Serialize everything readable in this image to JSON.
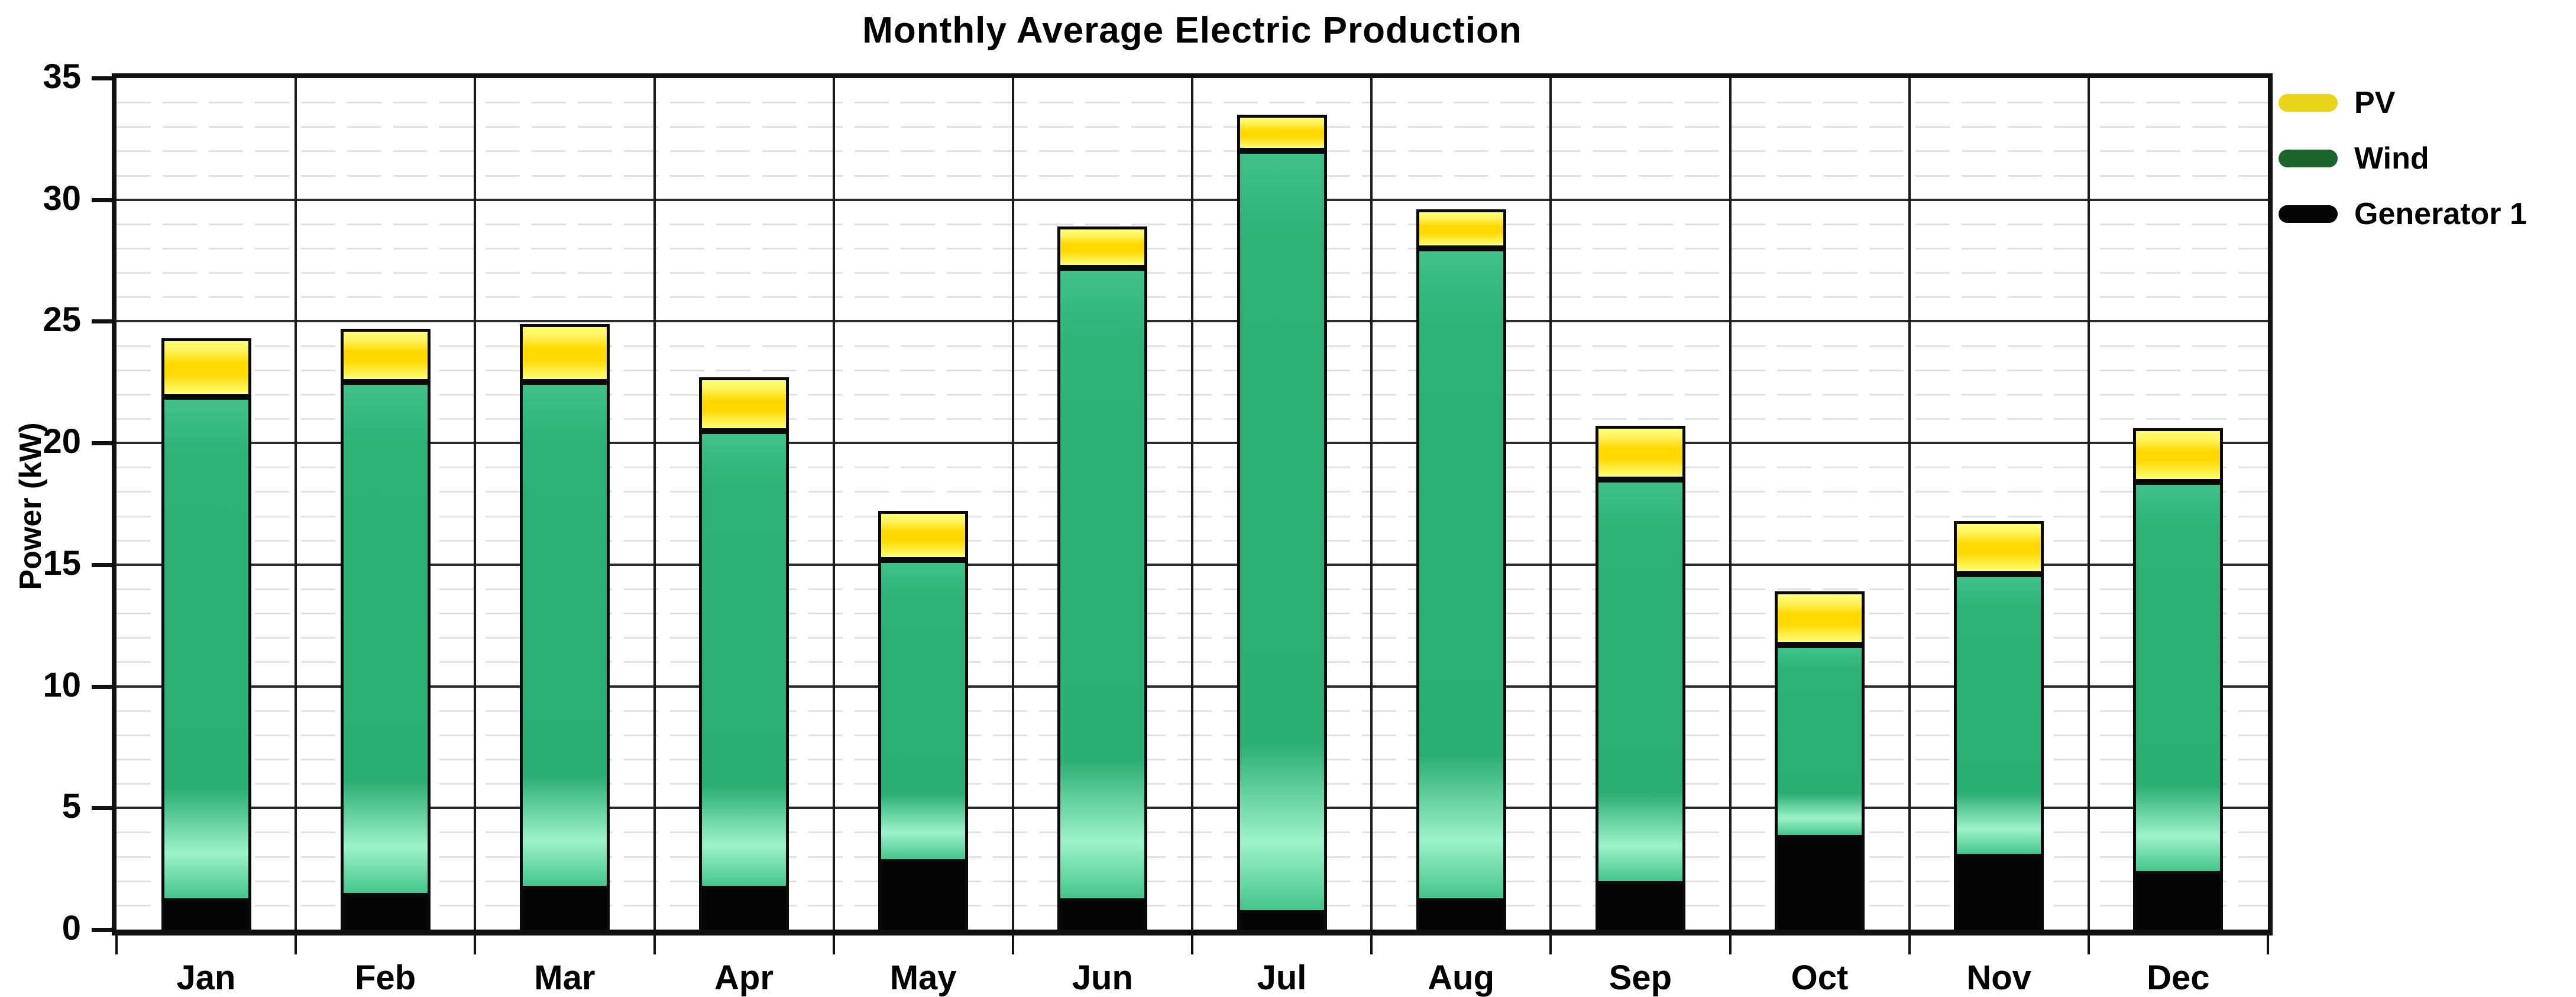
{
  "title": "Monthly Average Electric Production",
  "ylabel": "Power (kW)",
  "legend": {
    "position": "right",
    "items": [
      {
        "label": "PV",
        "color": "#e9d41a"
      },
      {
        "label": "Wind",
        "color": "#1b652c"
      },
      {
        "label": "Generator 1",
        "color": "#050505"
      }
    ]
  },
  "chart_data": {
    "type": "bar",
    "stacked": true,
    "title": "Monthly Average Electric Production",
    "xlabel": "",
    "ylabel": "Power (kW)",
    "categories": [
      "Jan",
      "Feb",
      "Mar",
      "Apr",
      "May",
      "Jun",
      "Jul",
      "Aug",
      "Sep",
      "Oct",
      "Nov",
      "Dec"
    ],
    "series": [
      {
        "name": "Generator 1",
        "color": "#050505",
        "values": [
          1.3,
          1.5,
          1.8,
          1.8,
          2.9,
          1.3,
          0.8,
          1.3,
          2.0,
          3.9,
          3.1,
          2.4
        ]
      },
      {
        "name": "Wind",
        "color": "#2bae74",
        "values": [
          20.6,
          21.0,
          20.7,
          18.7,
          12.3,
          25.9,
          31.2,
          26.7,
          16.5,
          7.8,
          11.5,
          16.0
        ]
      },
      {
        "name": "PV",
        "color": "#ffd900",
        "values": [
          2.4,
          2.2,
          2.4,
          2.2,
          2.0,
          1.7,
          1.5,
          1.6,
          2.2,
          2.2,
          2.2,
          2.2
        ]
      }
    ],
    "totals": [
      24.3,
      24.7,
      24.9,
      22.7,
      17.2,
      28.9,
      33.5,
      29.6,
      20.7,
      13.9,
      16.8,
      20.6
    ],
    "ylim": [
      0,
      35
    ],
    "yticks": [
      0,
      5,
      10,
      15,
      20,
      25,
      30,
      35
    ],
    "minor_grid_step": 1,
    "grid": true,
    "legend_position": "right"
  }
}
